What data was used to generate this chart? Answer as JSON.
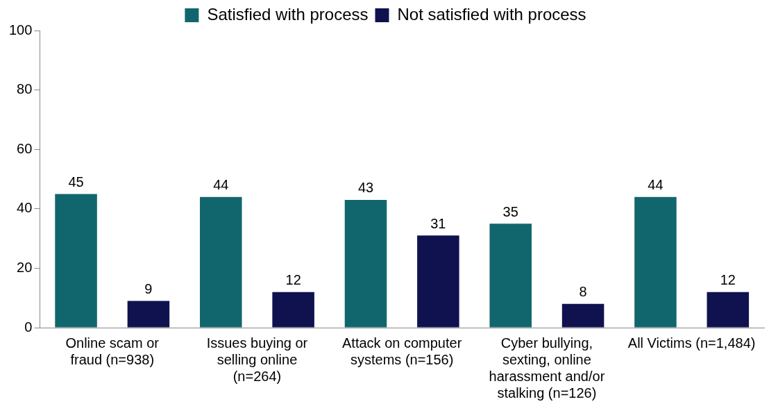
{
  "chart_data": {
    "type": "bar",
    "categories": [
      "Online scam or fraud (n=938)",
      "Issues buying or selling online (n=264)",
      "Attack on computer systems (n=156)",
      "Cyber bullying, sexting, online harassment and/or stalking (n=126)",
      "All Victims (n=1,484)"
    ],
    "series": [
      {
        "name": "Satisfied with process",
        "color": "#11666e",
        "values": [
          45,
          44,
          43,
          35,
          44
        ]
      },
      {
        "name": "Not satisfied with process",
        "color": "#0f124f",
        "values": [
          9,
          12,
          31,
          8,
          12
        ]
      }
    ],
    "ylim": [
      0,
      100
    ],
    "yticks": [
      0,
      20,
      40,
      60,
      80,
      100
    ],
    "grid": false,
    "legend": "top",
    "data_labels": true
  }
}
